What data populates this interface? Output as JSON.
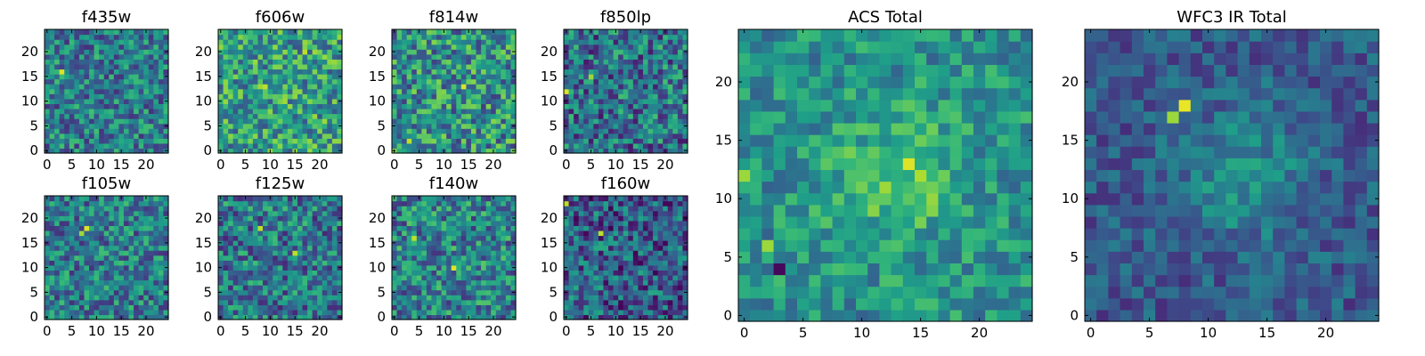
{
  "figure": {
    "colormap": "viridis"
  },
  "chart_data": [
    {
      "type": "heatmap",
      "title": "f435w",
      "grid": "25x25",
      "xlim": [
        0,
        24
      ],
      "ylim": [
        0,
        24
      ],
      "xticks": [
        "0",
        "5",
        "10",
        "15",
        "20"
      ],
      "yticks": [
        "0",
        "5",
        "10",
        "15",
        "20"
      ],
      "highlights": [
        {
          "x": 3,
          "y": 16,
          "level": 0.95
        }
      ]
    },
    {
      "type": "heatmap",
      "title": "f606w",
      "grid": "25x25",
      "xlim": [
        0,
        24
      ],
      "ylim": [
        0,
        24
      ],
      "xticks": [
        "0",
        "5",
        "10",
        "15",
        "20"
      ],
      "yticks": [
        "0",
        "5",
        "10",
        "15",
        "20"
      ],
      "highlights": [
        {
          "x": 9,
          "y": 13,
          "level": 0.9
        },
        {
          "x": 17,
          "y": 20,
          "level": 0.9
        }
      ]
    },
    {
      "type": "heatmap",
      "title": "f814w",
      "grid": "25x25",
      "xlim": [
        0,
        24
      ],
      "ylim": [
        0,
        24
      ],
      "xticks": [
        "0",
        "5",
        "10",
        "15",
        "20"
      ],
      "yticks": [
        "0",
        "5",
        "10",
        "15",
        "20"
      ],
      "highlights": [
        {
          "x": 14,
          "y": 13,
          "level": 0.95
        },
        {
          "x": 3,
          "y": 2,
          "level": 0.9
        }
      ]
    },
    {
      "type": "heatmap",
      "title": "f850lp",
      "grid": "25x25",
      "xlim": [
        0,
        24
      ],
      "ylim": [
        0,
        24
      ],
      "xticks": [
        "0",
        "5",
        "10",
        "15",
        "20"
      ],
      "yticks": [
        "0",
        "5",
        "10",
        "15",
        "20"
      ],
      "highlights": [
        {
          "x": 0,
          "y": 12,
          "level": 0.95
        },
        {
          "x": 5,
          "y": 15,
          "level": 0.85
        }
      ]
    },
    {
      "type": "heatmap",
      "title": "f105w",
      "grid": "25x25",
      "xlim": [
        0,
        24
      ],
      "ylim": [
        0,
        24
      ],
      "xticks": [
        "0",
        "5",
        "10",
        "15",
        "20"
      ],
      "yticks": [
        "0",
        "5",
        "10",
        "15",
        "20"
      ],
      "highlights": [
        {
          "x": 8,
          "y": 18,
          "level": 0.95
        },
        {
          "x": 7,
          "y": 17,
          "level": 0.85
        }
      ]
    },
    {
      "type": "heatmap",
      "title": "f125w",
      "grid": "25x25",
      "xlim": [
        0,
        24
      ],
      "ylim": [
        0,
        24
      ],
      "xticks": [
        "0",
        "5",
        "10",
        "15",
        "20"
      ],
      "yticks": [
        "0",
        "5",
        "10",
        "15",
        "20"
      ],
      "highlights": [
        {
          "x": 8,
          "y": 18,
          "level": 0.9
        },
        {
          "x": 15,
          "y": 13,
          "level": 0.9
        }
      ]
    },
    {
      "type": "heatmap",
      "title": "f140w",
      "grid": "25x25",
      "xlim": [
        0,
        24
      ],
      "ylim": [
        0,
        24
      ],
      "xticks": [
        "0",
        "5",
        "10",
        "15",
        "20"
      ],
      "yticks": [
        "0",
        "5",
        "10",
        "15",
        "20"
      ],
      "highlights": [
        {
          "x": 12,
          "y": 10,
          "level": 0.95
        },
        {
          "x": 4,
          "y": 16,
          "level": 0.9
        }
      ]
    },
    {
      "type": "heatmap",
      "title": "f160w",
      "grid": "25x25",
      "xlim": [
        0,
        24
      ],
      "ylim": [
        0,
        24
      ],
      "xticks": [
        "0",
        "5",
        "10",
        "15",
        "20"
      ],
      "yticks": [
        "0",
        "5",
        "10",
        "15",
        "20"
      ],
      "highlights": [
        {
          "x": 7,
          "y": 17,
          "level": 0.9
        },
        {
          "x": 0,
          "y": 23,
          "level": 0.9
        }
      ]
    },
    {
      "type": "heatmap",
      "title": "ACS Total",
      "grid": "25x25",
      "xlim": [
        0,
        24
      ],
      "ylim": [
        0,
        24
      ],
      "xticks": [
        "0",
        "5",
        "10",
        "15",
        "20"
      ],
      "yticks": [
        "0",
        "5",
        "10",
        "15",
        "20"
      ],
      "highlights": [
        {
          "x": 14,
          "y": 13,
          "level": 0.95
        },
        {
          "x": 0,
          "y": 12,
          "level": 0.85
        },
        {
          "x": 2,
          "y": 6,
          "level": 0.85
        },
        {
          "x": 3,
          "y": 4,
          "level": 0.02
        }
      ]
    },
    {
      "type": "heatmap",
      "title": "WFC3 IR Total",
      "grid": "25x25",
      "xlim": [
        0,
        24
      ],
      "ylim": [
        0,
        24
      ],
      "xticks": [
        "0",
        "5",
        "10",
        "15",
        "20"
      ],
      "yticks": [
        "0",
        "5",
        "10",
        "15",
        "20"
      ],
      "highlights": [
        {
          "x": 8,
          "y": 18,
          "level": 0.97
        },
        {
          "x": 7,
          "y": 17,
          "level": 0.85
        }
      ]
    }
  ]
}
